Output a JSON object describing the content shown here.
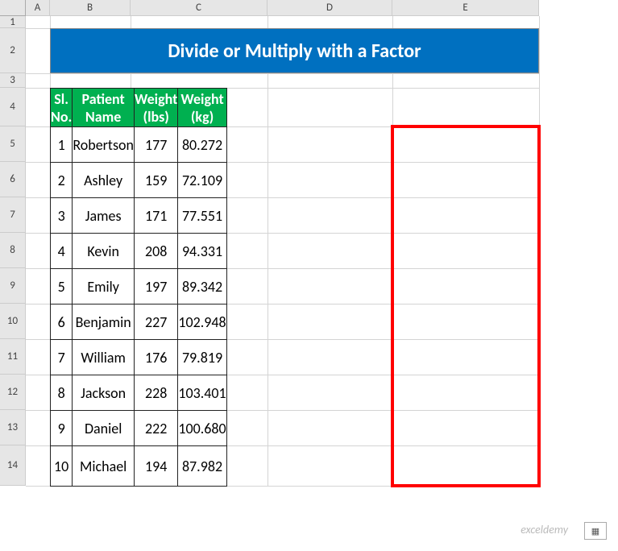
{
  "columns": [
    {
      "label": "A",
      "width": 30
    },
    {
      "label": "B",
      "width": 100
    },
    {
      "label": "C",
      "width": 170
    },
    {
      "label": "D",
      "width": 155
    },
    {
      "label": "E",
      "width": 182
    }
  ],
  "rows": [
    {
      "label": "1",
      "height": 15
    },
    {
      "label": "2",
      "height": 56
    },
    {
      "label": "3",
      "height": 18
    },
    {
      "label": "4",
      "height": 48
    },
    {
      "label": "5",
      "height": 44
    },
    {
      "label": "6",
      "height": 44
    },
    {
      "label": "7",
      "height": 44
    },
    {
      "label": "8",
      "height": 44
    },
    {
      "label": "9",
      "height": 44
    },
    {
      "label": "10",
      "height": 44
    },
    {
      "label": "11",
      "height": 44
    },
    {
      "label": "12",
      "height": 44
    },
    {
      "label": "13",
      "height": 44
    },
    {
      "label": "14",
      "height": 50
    }
  ],
  "title": "Divide or Multiply with a Factor",
  "title_bg": "#0070c0",
  "title_color": "#ffffff",
  "header_bg": "#00b050",
  "header_color": "#ffffff",
  "headers": [
    "Sl. No.",
    "Patient Name",
    "Weight (lbs)",
    "Weight (kg)"
  ],
  "data": [
    [
      "1",
      "Robertson",
      "177",
      "80.272"
    ],
    [
      "2",
      "Ashley",
      "159",
      "72.109"
    ],
    [
      "3",
      "James",
      "171",
      "77.551"
    ],
    [
      "4",
      "Kevin",
      "208",
      "94.331"
    ],
    [
      "5",
      "Emily",
      "197",
      "89.342"
    ],
    [
      "6",
      "Benjamin",
      "227",
      "102.948"
    ],
    [
      "7",
      "William",
      "176",
      "79.819"
    ],
    [
      "8",
      "Jackson",
      "228",
      "103.401"
    ],
    [
      "9",
      "Daniel",
      "222",
      "100.680"
    ],
    [
      "10",
      "Michael",
      "194",
      "87.982"
    ]
  ],
  "highlight_color": "#ff0000",
  "watermark": "exceldemy",
  "paste_label": "▦"
}
